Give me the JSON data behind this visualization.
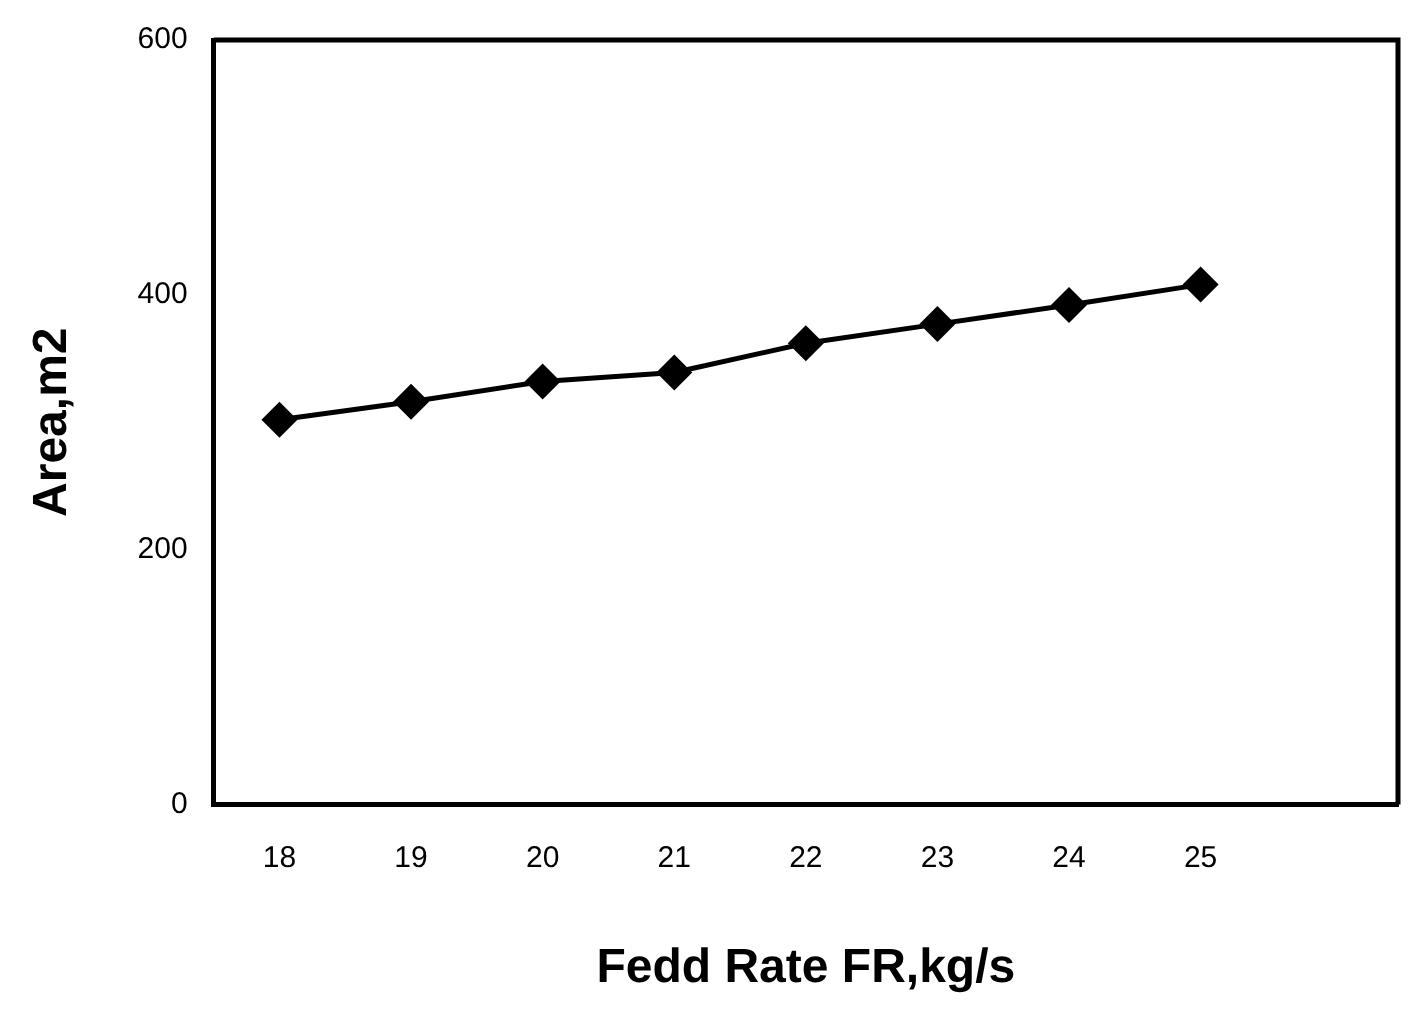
{
  "chart_data": {
    "type": "line",
    "xlabel": "Fedd Rate FR,kg/s",
    "ylabel": "Area,m2",
    "categories": [
      "18",
      "19",
      "20",
      "21",
      "22",
      "23",
      "24",
      "25",
      null
    ],
    "series": [
      {
        "color": "#000000",
        "values": [
          302,
          316,
          332,
          339,
          362,
          377,
          392,
          408,
          null
        ]
      }
    ],
    "ylim": [
      0,
      600
    ],
    "yticks": [
      0,
      200,
      400,
      600
    ],
    "marker": "diamond",
    "line_style": "solid",
    "grid": false,
    "legend": false
  }
}
